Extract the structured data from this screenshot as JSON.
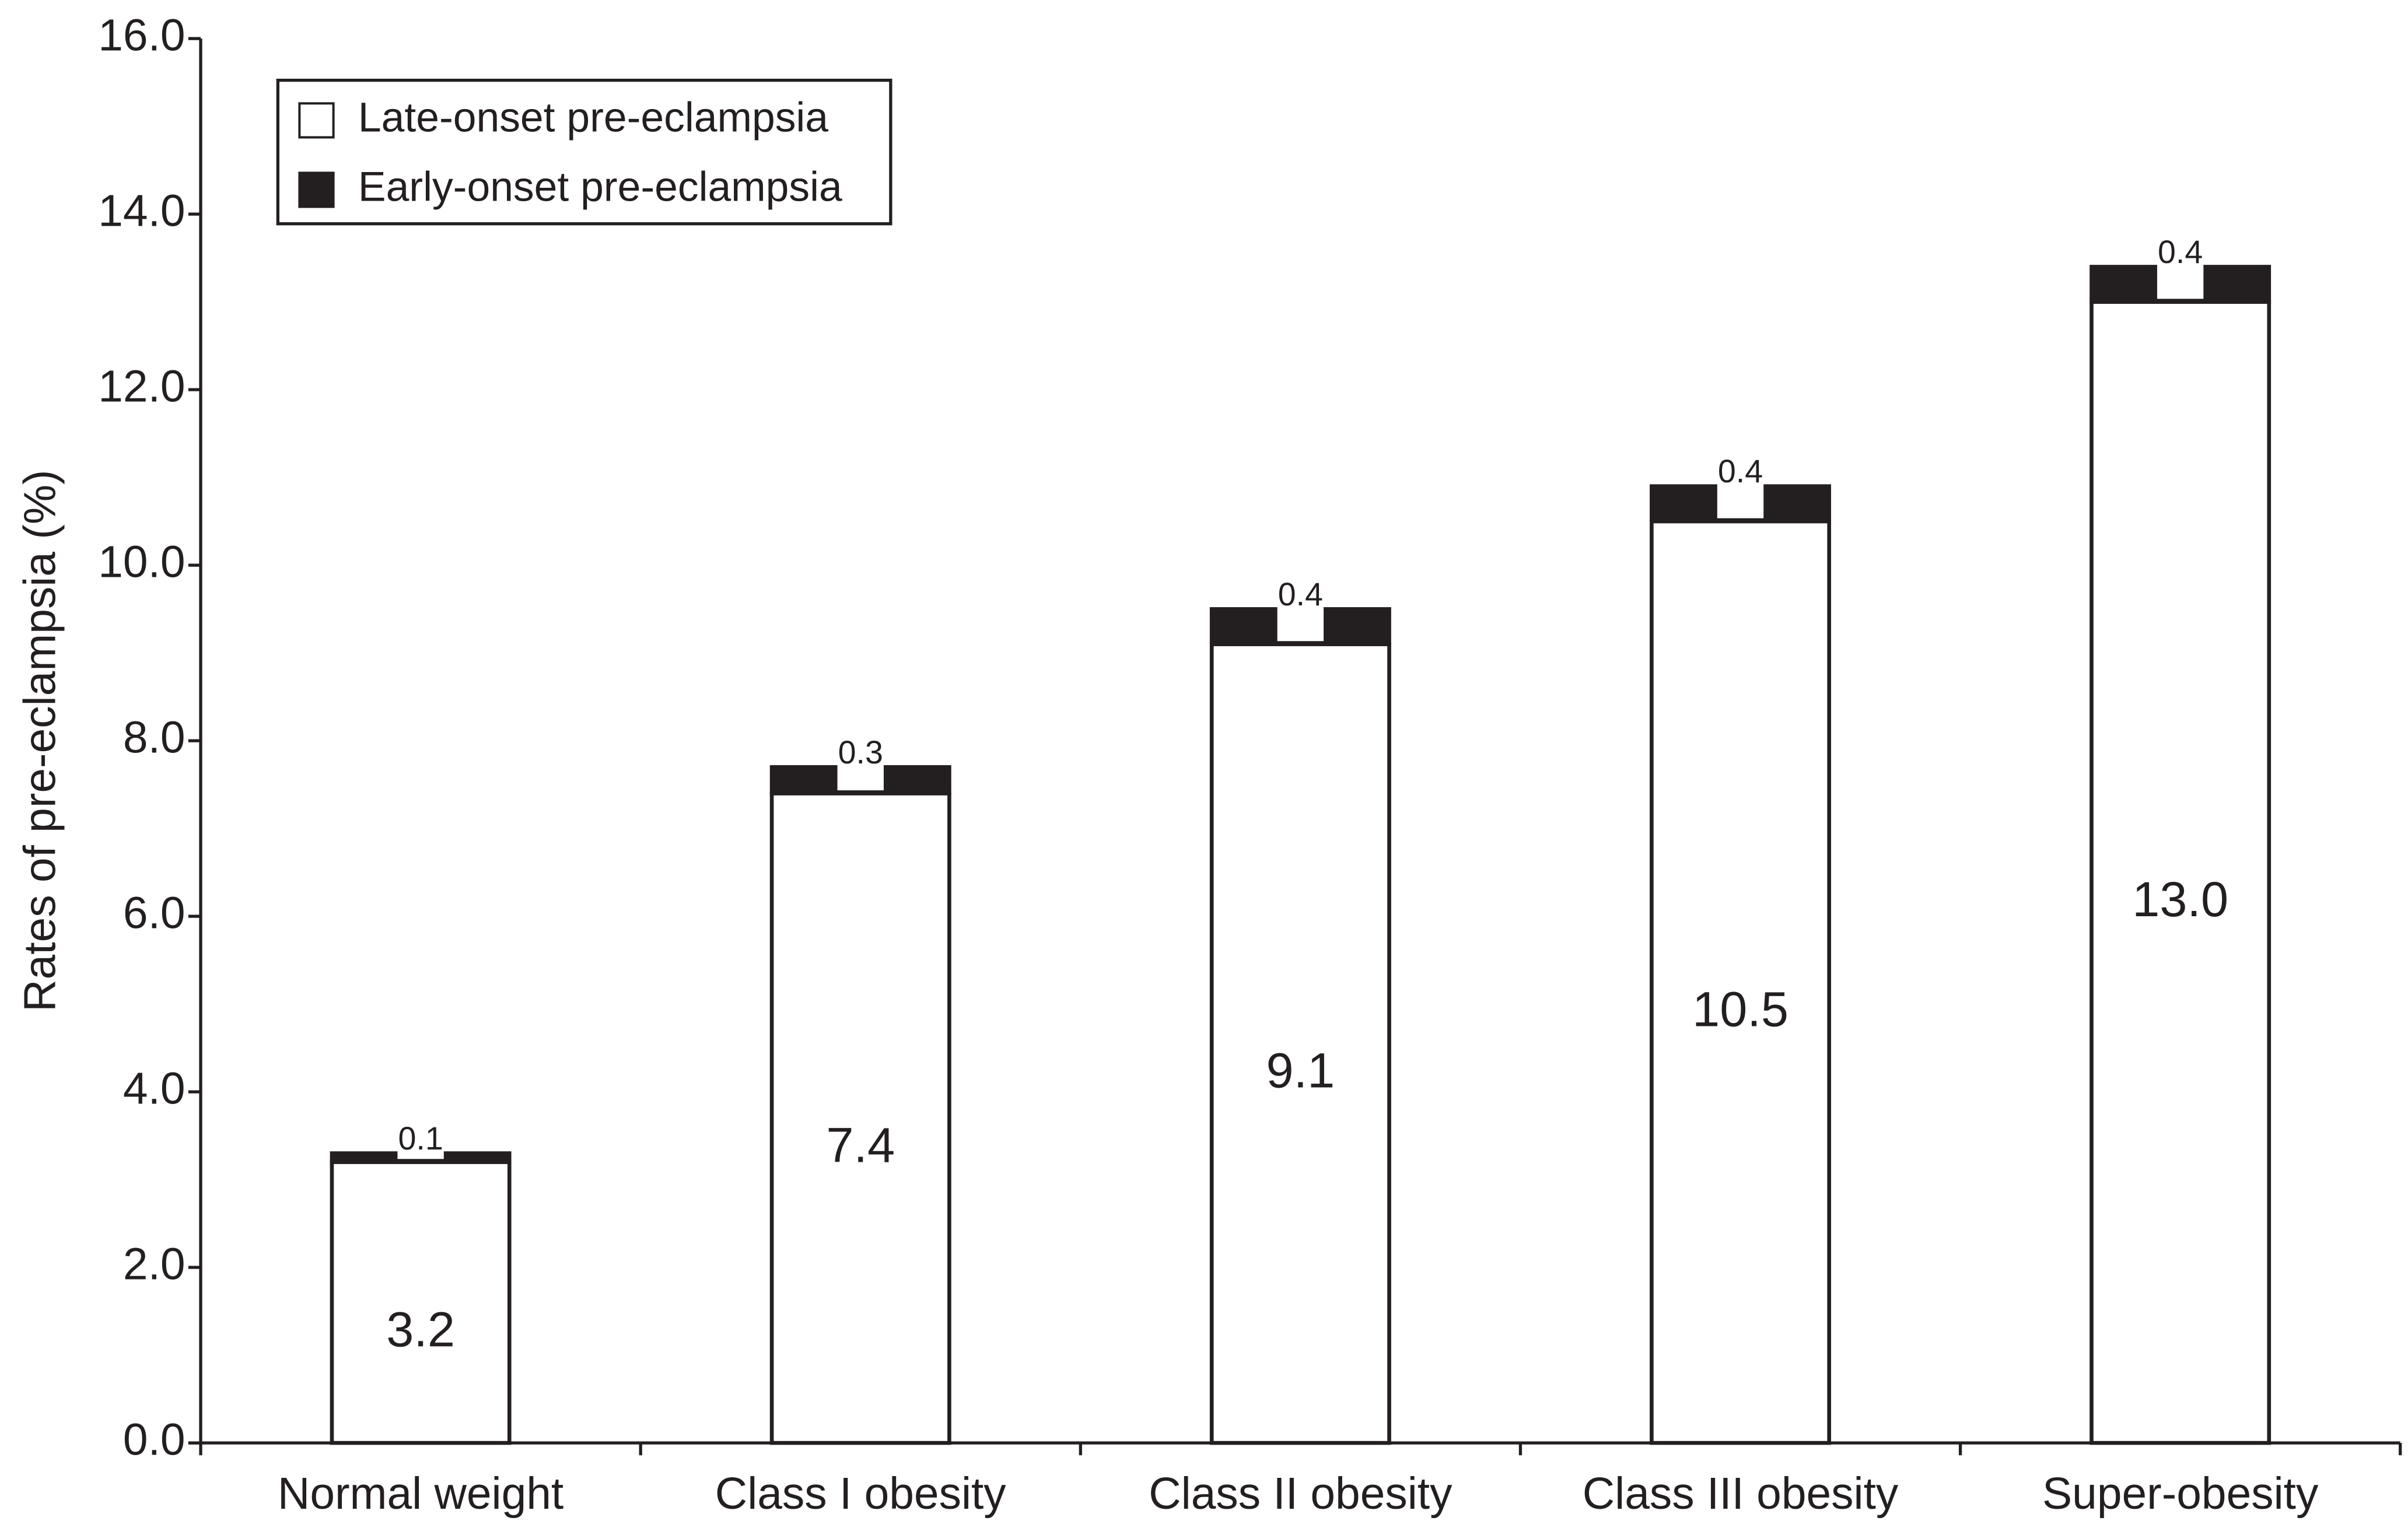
{
  "chart_data": {
    "type": "stacked-bar",
    "y_label": "Rates of pre-eclampsia (%)",
    "categories": [
      "Normal weight",
      "Class I obesity",
      "Class II obesity",
      "Class III obesity",
      "Super-obesity"
    ],
    "series": [
      {
        "name": "Late-onset pre-eclampsia",
        "color": "#ffffff",
        "values": [
          3.2,
          7.4,
          9.1,
          10.5,
          13.0
        ],
        "value_labels": [
          "3.2",
          "7.4",
          "9.1",
          "10.5",
          "13.0"
        ]
      },
      {
        "name": "Early-onset pre-eclampsia",
        "color": "#231f20",
        "values": [
          0.1,
          0.3,
          0.4,
          0.4,
          0.4
        ],
        "value_labels": [
          "0.1",
          "0.3",
          "0.4",
          "0.4",
          "0.4"
        ]
      }
    ],
    "ylim": [
      0,
      16
    ],
    "yticks": [
      {
        "value": 0,
        "label": "0.0"
      },
      {
        "value": 2,
        "label": "2.0"
      },
      {
        "value": 4,
        "label": "4.0"
      },
      {
        "value": 6,
        "label": "6.0"
      },
      {
        "value": 8,
        "label": "8.0"
      },
      {
        "value": 10,
        "label": "10.0"
      },
      {
        "value": 12,
        "label": "12.0"
      },
      {
        "value": 14,
        "label": "14.0"
      },
      {
        "value": 16,
        "label": "16.0"
      }
    ],
    "legend": "top-left",
    "grid": false
  }
}
